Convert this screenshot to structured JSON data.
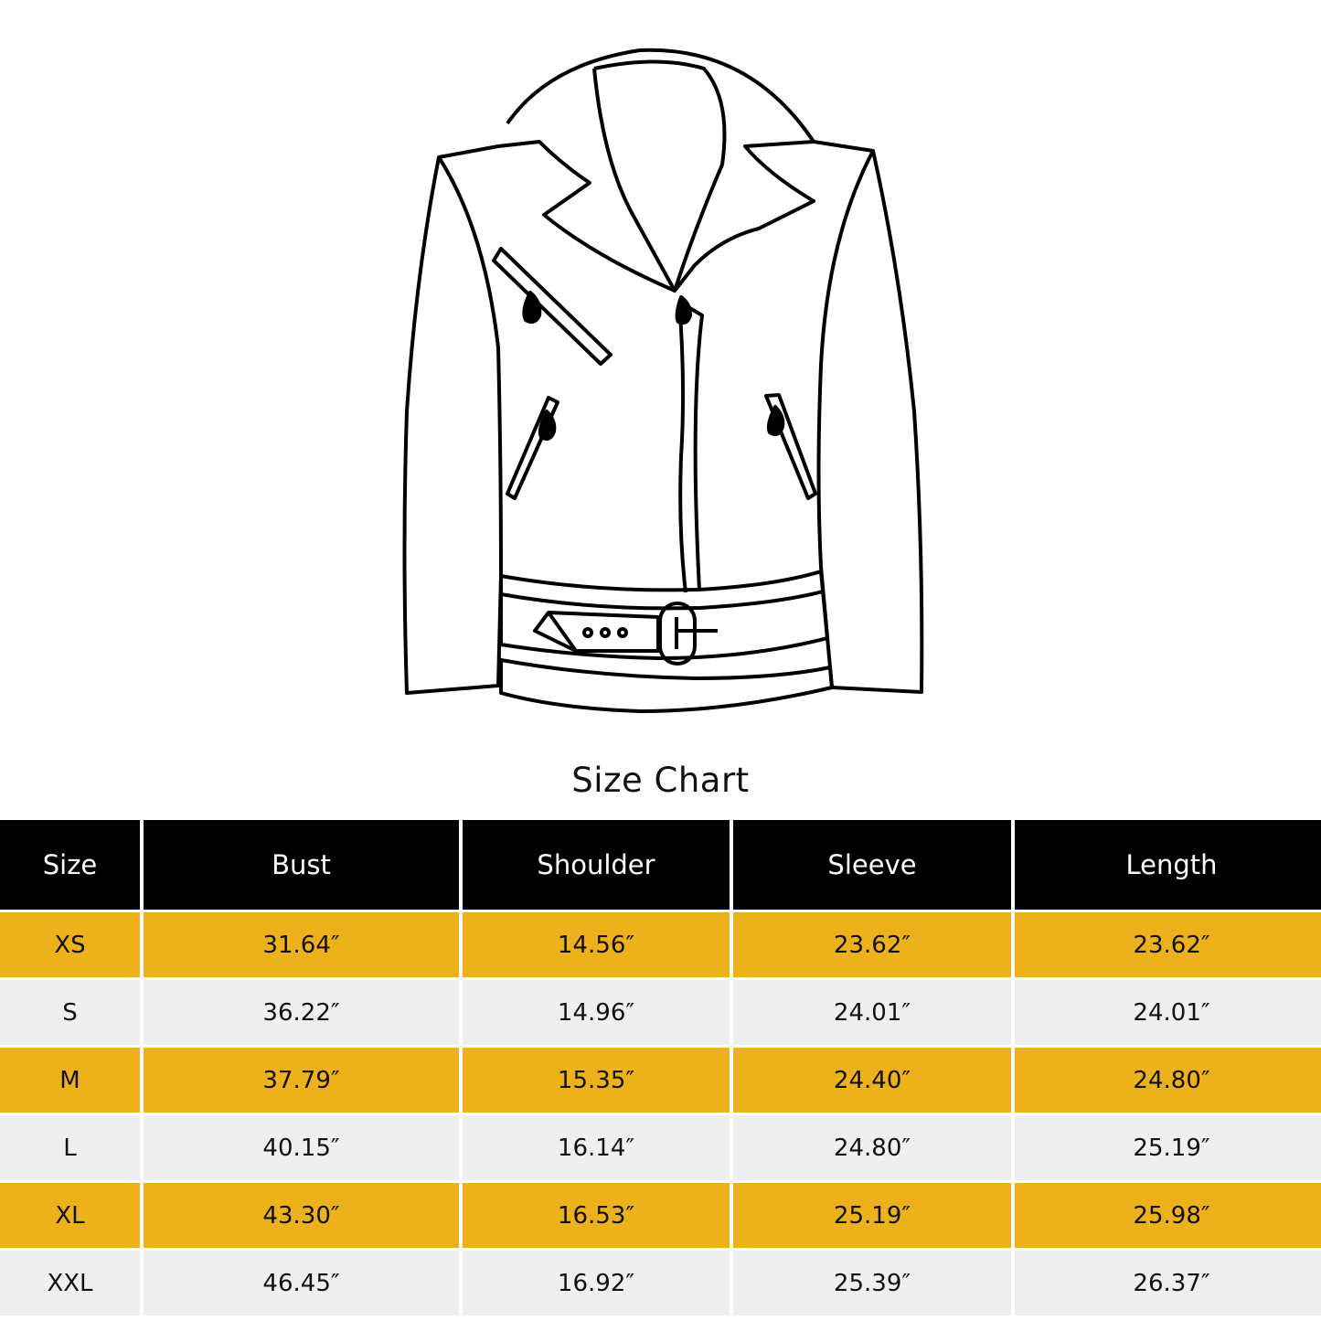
{
  "title": "Size Chart",
  "colors": {
    "header_bg": "#000000",
    "row_accent": "#EDB21B",
    "row_plain": "#EFEFEF"
  },
  "illustration": "jacket-outline-icon",
  "table": {
    "headers": [
      "Size",
      "Bust",
      "Shoulder",
      "Sleeve",
      "Length"
    ],
    "rows": [
      [
        "XS",
        "31.64″",
        "14.56″",
        "23.62″",
        "23.62″"
      ],
      [
        "S",
        "36.22″",
        "14.96″",
        "24.01″",
        "24.01″"
      ],
      [
        "M",
        "37.79″",
        "15.35″",
        "24.40″",
        "24.80″"
      ],
      [
        "L",
        "40.15″",
        "16.14″",
        "24.80″",
        "25.19″"
      ],
      [
        "XL",
        "43.30″",
        "16.53″",
        "25.19″",
        "25.98″"
      ],
      [
        "XXL",
        "46.45″",
        "16.92″",
        "25.39″",
        "26.37″"
      ]
    ]
  }
}
